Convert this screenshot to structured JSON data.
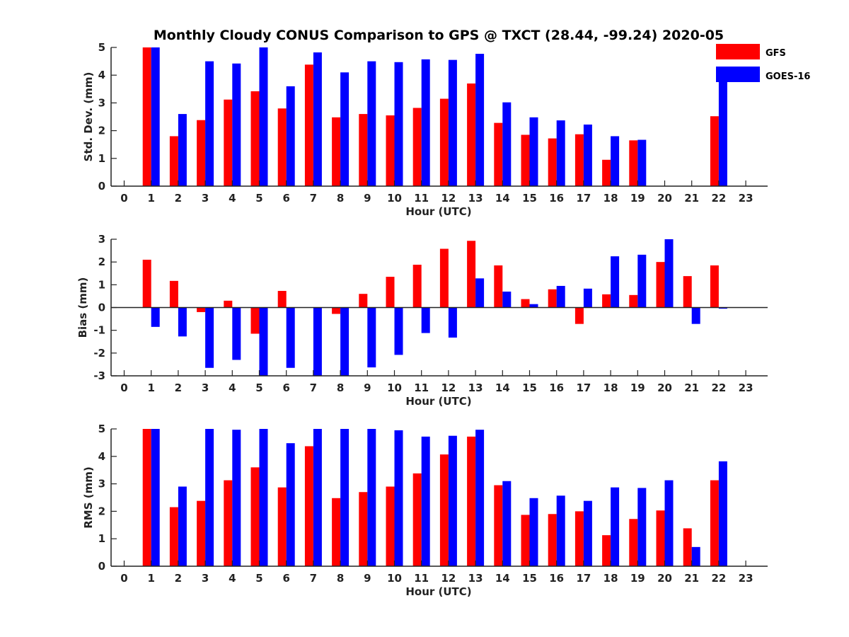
{
  "title": "Monthly Cloudy CONUS Comparison to GPS @ TXCT (28.44, -99.24) 2020-05",
  "legend": [
    {
      "name": "GFS",
      "color": "#ff0000"
    },
    {
      "name": "GOES-16",
      "color": "#0000ff"
    }
  ],
  "chart_data": [
    {
      "type": "bar",
      "title": "Monthly Cloudy CONUS Comparison to GPS @ TXCT (28.44, -99.24) 2020-05",
      "xlabel": "Hour (UTC)",
      "ylabel": "Std. Dev. (mm)",
      "ylim": [
        0,
        5
      ],
      "yticks": [
        "0",
        "1",
        "2",
        "3",
        "4",
        "5"
      ],
      "categories": [
        "0",
        "1",
        "2",
        "3",
        "4",
        "5",
        "6",
        "7",
        "8",
        "9",
        "10",
        "11",
        "12",
        "13",
        "14",
        "15",
        "16",
        "17",
        "18",
        "19",
        "20",
        "21",
        "22",
        "23"
      ],
      "series": [
        {
          "name": "GFS",
          "values": [
            null,
            5.0,
            1.8,
            2.38,
            3.12,
            3.42,
            2.8,
            4.38,
            2.48,
            2.6,
            2.55,
            2.82,
            3.15,
            3.7,
            2.28,
            1.85,
            1.72,
            1.87,
            0.95,
            1.65,
            null,
            null,
            2.52,
            null
          ]
        },
        {
          "name": "GOES-16",
          "values": [
            null,
            5.0,
            2.6,
            4.5,
            4.42,
            5.0,
            3.6,
            4.82,
            4.1,
            4.5,
            4.47,
            4.57,
            4.55,
            4.77,
            3.02,
            2.48,
            2.37,
            2.22,
            1.8,
            1.67,
            null,
            null,
            3.82,
            null
          ]
        }
      ]
    },
    {
      "type": "bar",
      "xlabel": "Hour (UTC)",
      "ylabel": "Bias (mm)",
      "ylim": [
        -3,
        3
      ],
      "yticks": [
        "-3",
        "-2",
        "-1",
        "0",
        "1",
        "2",
        "3"
      ],
      "categories": [
        "0",
        "1",
        "2",
        "3",
        "4",
        "5",
        "6",
        "7",
        "8",
        "9",
        "10",
        "11",
        "12",
        "13",
        "14",
        "15",
        "16",
        "17",
        "18",
        "19",
        "20",
        "21",
        "22",
        "23"
      ],
      "series": [
        {
          "name": "GFS",
          "values": [
            null,
            2.1,
            1.17,
            -0.2,
            0.3,
            -1.15,
            0.73,
            null,
            -0.28,
            0.6,
            1.35,
            1.88,
            2.58,
            2.93,
            1.85,
            0.37,
            0.8,
            -0.72,
            0.58,
            0.55,
            2.0,
            1.38,
            1.85,
            null
          ]
        },
        {
          "name": "GOES-16",
          "values": [
            null,
            -0.85,
            -1.27,
            -2.65,
            -2.3,
            -3.0,
            -2.65,
            -3.0,
            -3.0,
            -2.63,
            -2.08,
            -1.12,
            -1.32,
            1.28,
            0.7,
            0.15,
            0.95,
            0.83,
            2.25,
            2.32,
            3.0,
            -0.72,
            -0.05,
            null
          ]
        }
      ]
    },
    {
      "type": "bar",
      "xlabel": "Hour (UTC)",
      "ylabel": "RMS (mm)",
      "ylim": [
        0,
        5
      ],
      "yticks": [
        "0",
        "1",
        "2",
        "3",
        "4",
        "5"
      ],
      "categories": [
        "0",
        "1",
        "2",
        "3",
        "4",
        "5",
        "6",
        "7",
        "8",
        "9",
        "10",
        "11",
        "12",
        "13",
        "14",
        "15",
        "16",
        "17",
        "18",
        "19",
        "20",
        "21",
        "22",
        "23"
      ],
      "series": [
        {
          "name": "GFS",
          "values": [
            null,
            5.0,
            2.15,
            2.38,
            3.13,
            3.6,
            2.87,
            4.37,
            2.48,
            2.7,
            2.9,
            3.38,
            4.07,
            4.72,
            2.95,
            1.87,
            1.9,
            2.0,
            1.13,
            1.72,
            2.03,
            1.38,
            3.13,
            null
          ]
        },
        {
          "name": "GOES-16",
          "values": [
            null,
            5.0,
            2.9,
            5.0,
            4.97,
            5.0,
            4.48,
            5.0,
            5.0,
            5.0,
            4.95,
            4.72,
            4.75,
            4.97,
            3.1,
            2.48,
            2.57,
            2.38,
            2.87,
            2.85,
            3.13,
            0.7,
            3.82,
            null
          ]
        }
      ]
    }
  ]
}
